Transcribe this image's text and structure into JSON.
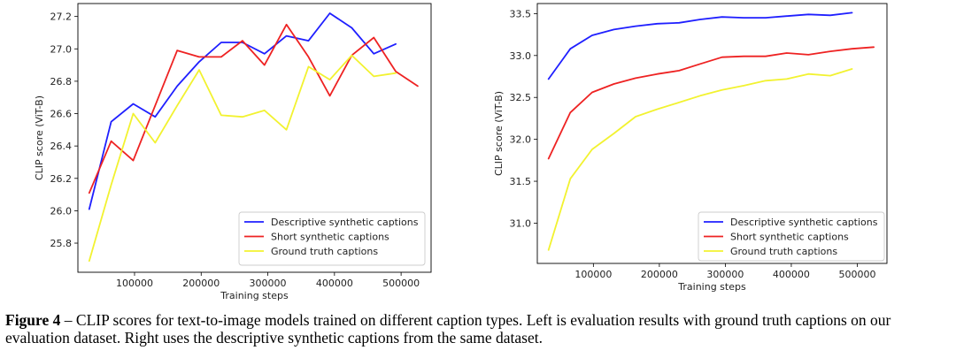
{
  "chart_data": [
    {
      "type": "line",
      "title": "",
      "xlabel": "Training steps",
      "ylabel": "CLIP score (ViT-B)",
      "xlim": [
        15000,
        545000
      ],
      "ylim": [
        25.62,
        27.28
      ],
      "xticks": [
        100000,
        200000,
        300000,
        400000,
        500000
      ],
      "xtick_labels": [
        "100000",
        "200000",
        "300000",
        "400000",
        "500000"
      ],
      "yticks": [
        25.8,
        26.0,
        26.2,
        26.4,
        26.6,
        26.8,
        27.0,
        27.2
      ],
      "ytick_labels": [
        "25.8",
        "26.0",
        "26.2",
        "26.4",
        "26.6",
        "26.8",
        "27.0",
        "27.2"
      ],
      "legend_position": "lower-right",
      "series": [
        {
          "name": "Descriptive synthetic captions",
          "color": "#1f1fff",
          "x": [
            32000,
            65000,
            98000,
            131000,
            164000,
            197000,
            230000,
            262000,
            295000,
            328000,
            361000,
            393000,
            426000,
            459000,
            492000
          ],
          "y": [
            26.01,
            26.55,
            26.66,
            26.58,
            26.77,
            26.92,
            27.04,
            27.04,
            26.97,
            27.08,
            27.05,
            27.22,
            27.13,
            26.97,
            27.03
          ]
        },
        {
          "name": "Short synthetic captions",
          "color": "#ee2222",
          "x": [
            32000,
            65000,
            98000,
            131000,
            164000,
            197000,
            230000,
            262000,
            295000,
            328000,
            361000,
            393000,
            426000,
            459000,
            492000,
            525000
          ],
          "y": [
            26.11,
            26.43,
            26.31,
            26.65,
            26.99,
            26.95,
            26.95,
            27.05,
            26.9,
            27.15,
            26.95,
            26.71,
            26.96,
            27.07,
            26.86,
            26.77
          ]
        },
        {
          "name": "Ground truth captions",
          "color": "#f2f230",
          "x": [
            32000,
            65000,
            98000,
            131000,
            164000,
            197000,
            230000,
            262000,
            295000,
            328000,
            361000,
            393000,
            426000,
            459000,
            492000
          ],
          "y": [
            25.69,
            26.16,
            26.6,
            26.42,
            26.65,
            26.87,
            26.59,
            26.58,
            26.62,
            26.5,
            26.89,
            26.81,
            26.96,
            26.83,
            26.85
          ]
        }
      ]
    },
    {
      "type": "line",
      "title": "",
      "xlabel": "Training steps",
      "ylabel": "CLIP score (ViT-B)",
      "xlim": [
        15000,
        545000
      ],
      "ylim": [
        30.52,
        33.62
      ],
      "xticks": [
        100000,
        200000,
        300000,
        400000,
        500000
      ],
      "xtick_labels": [
        "100000",
        "200000",
        "300000",
        "400000",
        "500000"
      ],
      "yticks": [
        31.0,
        31.5,
        32.0,
        32.5,
        33.0,
        33.5
      ],
      "ytick_labels": [
        "31.0",
        "31.5",
        "32.0",
        "32.5",
        "33.0",
        "33.5"
      ],
      "legend_position": "lower-right",
      "series": [
        {
          "name": "Descriptive synthetic captions",
          "color": "#1f1fff",
          "x": [
            32000,
            65000,
            98000,
            131000,
            164000,
            197000,
            230000,
            262000,
            295000,
            328000,
            361000,
            393000,
            426000,
            459000,
            492000
          ],
          "y": [
            32.72,
            33.08,
            33.24,
            33.31,
            33.35,
            33.38,
            33.39,
            33.43,
            33.46,
            33.45,
            33.45,
            33.47,
            33.49,
            33.48,
            33.51
          ]
        },
        {
          "name": "Short synthetic captions",
          "color": "#ee2222",
          "x": [
            32000,
            65000,
            98000,
            131000,
            164000,
            197000,
            230000,
            262000,
            295000,
            328000,
            361000,
            393000,
            426000,
            459000,
            492000,
            525000
          ],
          "y": [
            31.77,
            32.32,
            32.56,
            32.66,
            32.73,
            32.78,
            32.82,
            32.9,
            32.98,
            32.99,
            32.99,
            33.03,
            33.01,
            33.05,
            33.08,
            33.1
          ]
        },
        {
          "name": "Ground truth captions",
          "color": "#f2f230",
          "x": [
            32000,
            65000,
            98000,
            131000,
            164000,
            197000,
            230000,
            262000,
            295000,
            328000,
            361000,
            393000,
            426000,
            459000,
            492000
          ],
          "y": [
            30.68,
            31.53,
            31.88,
            32.07,
            32.27,
            32.36,
            32.44,
            32.52,
            32.59,
            32.64,
            32.7,
            32.72,
            32.78,
            32.76,
            32.84
          ]
        }
      ]
    }
  ],
  "caption": {
    "label": "Figure 4",
    "text": " – CLIP scores for text-to-image models trained on different caption types. Left is evaluation results with ground truth captions on our evaluation dataset. Right uses the descriptive synthetic captions from the same dataset."
  }
}
